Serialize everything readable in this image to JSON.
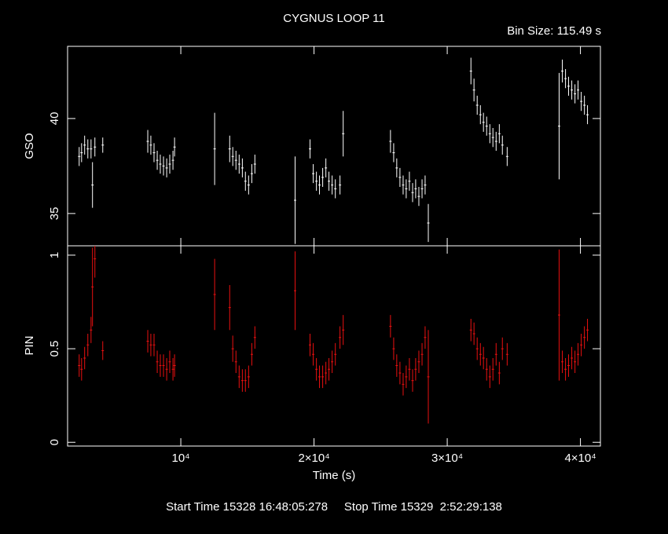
{
  "chart_data": [
    {
      "type": "errorbar",
      "title": "CYGNUS LOOP 11",
      "subtitle": "Bin Size: 115.49 s",
      "ylabel": "GSO",
      "color": "#ffffff",
      "x": [
        2370,
        2550,
        2780,
        3020,
        3260,
        3370,
        3550,
        4140,
        7520,
        7750,
        7990,
        8230,
        8460,
        8700,
        8940,
        9170,
        9410,
        9530,
        12540,
        13670,
        13900,
        14140,
        14380,
        14620,
        14850,
        15090,
        15330,
        15560,
        18580,
        19700,
        19940,
        20180,
        20410,
        20650,
        20890,
        21120,
        21360,
        21600,
        21950,
        22190,
        25740,
        25980,
        26210,
        26450,
        26690,
        26920,
        27160,
        27400,
        27630,
        27870,
        28110,
        28340,
        28580,
        31780,
        32010,
        32250,
        32490,
        32720,
        32960,
        33200,
        33430,
        33670,
        33910,
        34140,
        34500,
        38400,
        38640,
        38880,
        39110,
        39350,
        39590,
        39820,
        40060,
        40300,
        40530
      ],
      "values": [
        38.0,
        38.2,
        38.6,
        38.4,
        38.4,
        36.5,
        38.5,
        38.6,
        38.8,
        38.6,
        38.2,
        37.8,
        37.6,
        37.5,
        37.4,
        37.6,
        37.8,
        38.5,
        38.4,
        38.4,
        38.0,
        37.8,
        37.6,
        37.4,
        36.7,
        36.5,
        37.1,
        37.6,
        35.7,
        38.4,
        37.1,
        36.7,
        36.5,
        36.9,
        37.4,
        36.7,
        36.5,
        36.3,
        36.5,
        39.2,
        38.8,
        38.2,
        37.4,
        36.9,
        36.5,
        36.3,
        36.7,
        36.1,
        36.3,
        35.9,
        36.3,
        36.5,
        34.5,
        42.5,
        41.5,
        40.7,
        40.2,
        39.8,
        39.6,
        39.2,
        39.0,
        38.8,
        39.2,
        38.6,
        38.0,
        39.6,
        42.5,
        42.1,
        41.7,
        41.5,
        41.3,
        41.5,
        40.9,
        40.7,
        40.2
      ],
      "errors": [
        0.5,
        0.5,
        0.5,
        0.5,
        0.5,
        1.2,
        0.5,
        0.4,
        0.6,
        0.5,
        0.5,
        0.5,
        0.5,
        0.5,
        0.5,
        0.5,
        0.5,
        0.5,
        1.9,
        0.7,
        0.5,
        0.5,
        0.5,
        0.5,
        0.5,
        0.5,
        0.5,
        0.5,
        2.3,
        0.5,
        0.5,
        0.5,
        0.5,
        0.5,
        0.5,
        0.5,
        0.5,
        0.5,
        0.5,
        1.2,
        0.6,
        0.5,
        0.5,
        0.5,
        0.5,
        0.5,
        0.5,
        0.5,
        0.5,
        0.5,
        0.5,
        0.5,
        1.0,
        0.7,
        0.6,
        0.5,
        0.5,
        0.5,
        0.5,
        0.5,
        0.5,
        0.5,
        0.5,
        0.5,
        0.5,
        2.8,
        0.6,
        0.5,
        0.5,
        0.5,
        0.5,
        0.5,
        0.5,
        0.5,
        0.5
      ],
      "xlim": [
        1500,
        41500
      ],
      "ylim": [
        33.3,
        43.8
      ],
      "yticks": [
        35,
        40
      ]
    },
    {
      "type": "errorbar",
      "ylabel": "PIN",
      "xlabel": "Time (s)",
      "color": "#e81010",
      "x": [
        2370,
        2550,
        2780,
        3020,
        3260,
        3370,
        3550,
        4140,
        7520,
        7750,
        7990,
        8230,
        8460,
        8700,
        8940,
        9170,
        9410,
        9530,
        12540,
        13670,
        13900,
        14140,
        14380,
        14620,
        14850,
        15090,
        15330,
        15560,
        18580,
        19700,
        19940,
        20180,
        20410,
        20650,
        20890,
        21120,
        21360,
        21600,
        21950,
        22190,
        25740,
        25980,
        26210,
        26450,
        26690,
        26920,
        27160,
        27400,
        27630,
        27870,
        28110,
        28340,
        28580,
        31780,
        32010,
        32250,
        32490,
        32720,
        32960,
        33200,
        33430,
        33670,
        33910,
        34140,
        34500,
        38400,
        38640,
        38880,
        39110,
        39350,
        39590,
        39820,
        40060,
        40300,
        40530
      ],
      "values": [
        0.41,
        0.39,
        0.45,
        0.52,
        0.6,
        0.83,
        0.98,
        0.49,
        0.54,
        0.52,
        0.52,
        0.43,
        0.41,
        0.41,
        0.39,
        0.43,
        0.39,
        0.41,
        0.79,
        0.72,
        0.5,
        0.43,
        0.35,
        0.33,
        0.33,
        0.35,
        0.47,
        0.56,
        0.81,
        0.52,
        0.47,
        0.39,
        0.35,
        0.35,
        0.37,
        0.39,
        0.43,
        0.47,
        0.56,
        0.6,
        0.62,
        0.5,
        0.41,
        0.37,
        0.31,
        0.35,
        0.39,
        0.33,
        0.39,
        0.43,
        0.47,
        0.56,
        0.35,
        0.6,
        0.58,
        0.5,
        0.47,
        0.45,
        0.39,
        0.35,
        0.39,
        0.47,
        0.37,
        0.5,
        0.47,
        0.68,
        0.43,
        0.39,
        0.41,
        0.45,
        0.43,
        0.47,
        0.52,
        0.56,
        0.6
      ],
      "errors": [
        0.06,
        0.06,
        0.06,
        0.06,
        0.07,
        0.21,
        0.1,
        0.05,
        0.06,
        0.06,
        0.06,
        0.06,
        0.06,
        0.06,
        0.06,
        0.06,
        0.06,
        0.06,
        0.19,
        0.12,
        0.07,
        0.06,
        0.06,
        0.06,
        0.06,
        0.06,
        0.06,
        0.06,
        0.21,
        0.06,
        0.06,
        0.06,
        0.06,
        0.06,
        0.06,
        0.06,
        0.06,
        0.06,
        0.06,
        0.08,
        0.06,
        0.06,
        0.06,
        0.06,
        0.06,
        0.06,
        0.06,
        0.06,
        0.06,
        0.06,
        0.06,
        0.06,
        0.25,
        0.06,
        0.06,
        0.06,
        0.06,
        0.06,
        0.06,
        0.06,
        0.06,
        0.06,
        0.06,
        0.06,
        0.06,
        0.35,
        0.06,
        0.06,
        0.06,
        0.06,
        0.06,
        0.06,
        0.06,
        0.06,
        0.06
      ],
      "xlim": [
        1500,
        41500
      ],
      "ylim": [
        -0.02,
        1.05
      ],
      "yticks": [
        0,
        0.5,
        1
      ],
      "xticks": [
        {
          "value": 10000,
          "label": "10⁴"
        },
        {
          "value": 20000,
          "label": "2×10⁴"
        },
        {
          "value": 30000,
          "label": "3×10⁴"
        },
        {
          "value": 40000,
          "label": "4×10⁴"
        }
      ]
    }
  ],
  "footer": "Start Time 15328 16:48:05:278     Stop Time 15329  2:52:29:138"
}
